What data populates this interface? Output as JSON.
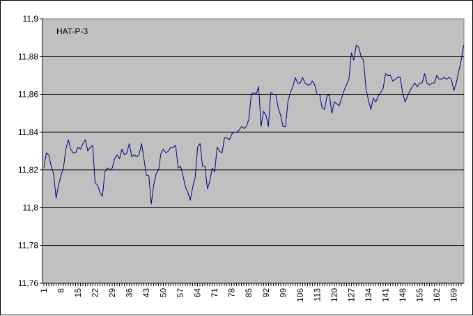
{
  "chart_data": {
    "type": "line",
    "title": "HAT-P-3",
    "xlabel": "",
    "ylabel": "",
    "ylim": [
      11.76,
      11.9
    ],
    "y_ticks": [
      "11,76",
      "11,78",
      "11,8",
      "11,82",
      "11,84",
      "11,86",
      "11,88",
      "11,9"
    ],
    "x_range": [
      1,
      172
    ],
    "x_ticks": [
      "1",
      "8",
      "15",
      "22",
      "29",
      "36",
      "43",
      "50",
      "57",
      "64",
      "71",
      "78",
      "85",
      "92",
      "99",
      "106",
      "113",
      "120",
      "127",
      "134",
      "141",
      "148",
      "155",
      "162",
      "169"
    ],
    "grid": "horizontal",
    "legend": "none",
    "colors": {
      "plot_background": "#c0c0c0",
      "line": "#000080",
      "grid": "#000000"
    },
    "series": [
      {
        "values": [
          11.821,
          11.829,
          11.828,
          11.822,
          11.818,
          11.805,
          11.812,
          11.817,
          11.821,
          11.831,
          11.836,
          11.831,
          11.829,
          11.829,
          11.832,
          11.831,
          11.834,
          11.836,
          11.83,
          11.832,
          11.833,
          11.813,
          11.812,
          11.808,
          11.806,
          11.819,
          11.821,
          11.82,
          11.821,
          11.826,
          11.828,
          11.826,
          11.831,
          11.828,
          11.829,
          11.834,
          11.827,
          11.828,
          11.827,
          11.828,
          11.834,
          11.826,
          11.817,
          11.817,
          11.802,
          11.812,
          11.818,
          11.82,
          11.829,
          11.831,
          11.829,
          11.83,
          11.832,
          11.832,
          11.833,
          11.821,
          11.822,
          11.817,
          11.811,
          11.808,
          11.804,
          11.811,
          11.816,
          11.832,
          11.834,
          11.822,
          11.822,
          11.81,
          11.814,
          11.821,
          11.819,
          11.832,
          11.83,
          11.829,
          11.837,
          11.837,
          11.836,
          11.839,
          11.84,
          11.84,
          11.841,
          11.843,
          11.842,
          11.843,
          11.847,
          11.86,
          11.861,
          11.86,
          11.864,
          11.843,
          11.851,
          11.849,
          11.843,
          11.861,
          11.86,
          11.86,
          11.853,
          11.849,
          11.843,
          11.843,
          11.856,
          11.861,
          11.864,
          11.869,
          11.866,
          11.866,
          11.869,
          11.866,
          11.865,
          11.865,
          11.867,
          11.865,
          11.86,
          11.86,
          11.853,
          11.852,
          11.859,
          11.86,
          11.85,
          11.856,
          11.855,
          11.854,
          11.858,
          11.862,
          11.865,
          11.868,
          11.882,
          11.878,
          11.886,
          11.885,
          11.88,
          11.878,
          11.863,
          11.857,
          11.852,
          11.858,
          11.856,
          11.859,
          11.861,
          11.863,
          11.871,
          11.87,
          11.87,
          11.867,
          11.868,
          11.869,
          11.869,
          11.861,
          11.856,
          11.859,
          11.862,
          11.864,
          11.866,
          11.864,
          11.866,
          11.866,
          11.871,
          11.866,
          11.865,
          11.866,
          11.866,
          11.87,
          11.868,
          11.868,
          11.869,
          11.868,
          11.869,
          11.868,
          11.862,
          11.866,
          11.872,
          11.878,
          11.886
        ]
      }
    ]
  }
}
